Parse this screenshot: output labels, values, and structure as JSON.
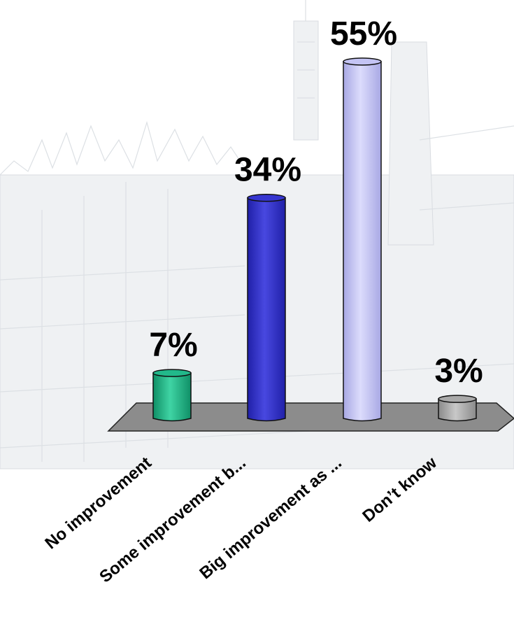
{
  "chart_data": {
    "type": "bar",
    "categories": [
      "No improvement",
      "Some improvement b...",
      "Big improvement as ...",
      "Don’t know"
    ],
    "values": [
      7,
      34,
      55,
      3
    ],
    "value_labels": [
      "7%",
      "34%",
      "55%",
      "3%"
    ],
    "ylim": [
      0,
      55
    ],
    "grid": false,
    "legend": "none",
    "colors": [
      "#22b88a",
      "#3636d0",
      "#c4c4f4",
      "#a9a9a9"
    ],
    "floor_color": "#8c8c8c",
    "background": "faint Westminster skyline sketch"
  }
}
